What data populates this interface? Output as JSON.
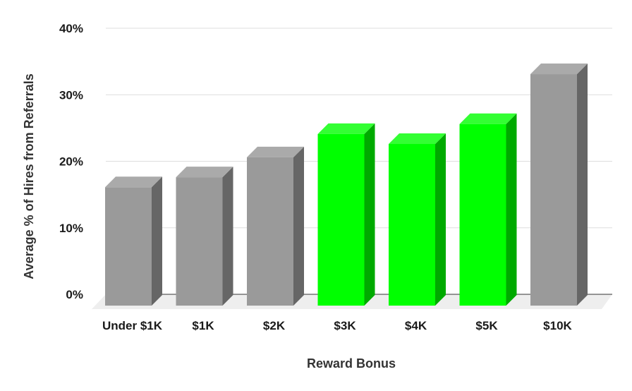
{
  "chart_data": {
    "type": "bar",
    "style": "3d",
    "categories": [
      "Under $1K",
      "$1K",
      "$2K",
      "$3K",
      "$4K",
      "$5K",
      "$10K"
    ],
    "values": [
      17,
      18.5,
      21.5,
      25,
      23.5,
      26.5,
      34
    ],
    "highlighted": [
      false,
      false,
      false,
      true,
      true,
      true,
      false
    ],
    "xlabel": "Reward Bonus",
    "ylabel": "Average % of Hires from Referrals",
    "ylim": [
      0,
      40
    ],
    "yticks": [
      0,
      10,
      20,
      30,
      40
    ],
    "ytick_labels": [
      "0%",
      "10%",
      "20%",
      "30%",
      "40%"
    ],
    "grid": true,
    "legend": "none",
    "colors": {
      "default_front": "#9a9a9a",
      "default_side": "#666666",
      "default_top": "#aaaaaa",
      "highlight_front": "#00ff00",
      "highlight_side": "#00aa00",
      "highlight_top": "#33ff33",
      "grid": "#dddddd",
      "floor": "#eeeeee"
    }
  }
}
